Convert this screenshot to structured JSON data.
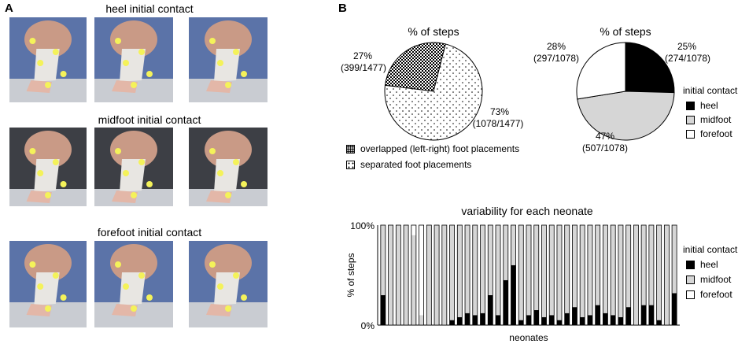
{
  "panels": {
    "a": "A",
    "b": "B"
  },
  "panel_a": {
    "rows": [
      {
        "title": "heel initial contact"
      },
      {
        "title": "midfoot initial contact"
      },
      {
        "title": "forefoot initial contact"
      }
    ],
    "photo_icon": "infant-walking-photo"
  },
  "colors": {
    "heel": "#000000",
    "midfoot": "#d6d6d6",
    "forefoot": "#ffffff",
    "photo_bg": "#5a6f9a"
  },
  "chart_data": [
    {
      "type": "pie",
      "title": "% of steps",
      "slices": [
        {
          "label": "overlapped (left-right) foot placements",
          "value": 399,
          "total": 1477,
          "pct_text": "27%",
          "count_text": "(399/1477)",
          "pattern": "dense-checker"
        },
        {
          "label": "separated foot placements",
          "value": 1078,
          "total": 1477,
          "pct_text": "73%",
          "count_text": "(1078/1477)",
          "pattern": "sparse-dots"
        }
      ],
      "legend": [
        "overlapped (left-right) foot placements",
        "separated foot placements"
      ]
    },
    {
      "type": "pie",
      "title": "% of steps",
      "slices": [
        {
          "label": "heel",
          "value": 274,
          "total": 1078,
          "pct_text": "25%",
          "count_text": "(274/1078)",
          "color": "#000000"
        },
        {
          "label": "midfoot",
          "value": 507,
          "total": 1078,
          "pct_text": "47%",
          "count_text": "(507/1078)",
          "color": "#d6d6d6"
        },
        {
          "label": "forefoot",
          "value": 297,
          "total": 1078,
          "pct_text": "28%",
          "count_text": "(297/1078)",
          "color": "#ffffff"
        }
      ],
      "legend_title": "initial contact",
      "legend": [
        "heel",
        "midfoot",
        "forefoot"
      ]
    },
    {
      "type": "bar",
      "stacked": true,
      "title": "variability for each neonate",
      "xlabel": "neonates",
      "ylabel": "% of steps",
      "yticks": [
        "100%",
        "0%"
      ],
      "ylim": [
        0,
        100
      ],
      "legend_title": "initial contact",
      "series_names": [
        "heel",
        "midfoot",
        "forefoot"
      ],
      "heel": [
        30,
        0,
        0,
        0,
        0,
        0,
        0,
        0,
        0,
        5,
        8,
        12,
        10,
        12,
        30,
        10,
        45,
        60,
        5,
        10,
        15,
        8,
        10,
        5,
        12,
        18,
        8,
        10,
        20,
        12,
        10,
        8,
        18,
        0,
        20,
        20,
        5,
        0,
        32
      ],
      "midfoot": [
        70,
        100,
        100,
        100,
        90,
        10,
        100,
        100,
        100,
        95,
        92,
        88,
        90,
        88,
        70,
        90,
        55,
        40,
        95,
        90,
        85,
        92,
        90,
        95,
        88,
        82,
        92,
        90,
        80,
        88,
        90,
        92,
        82,
        100,
        80,
        80,
        95,
        100,
        68
      ],
      "forefoot": [
        0,
        0,
        0,
        0,
        10,
        90,
        0,
        0,
        0,
        0,
        0,
        0,
        0,
        0,
        0,
        0,
        0,
        0,
        0,
        0,
        0,
        0,
        0,
        0,
        0,
        0,
        0,
        0,
        0,
        0,
        0,
        0,
        0,
        0,
        0,
        0,
        0,
        0,
        0
      ],
      "legend": [
        "heel",
        "midfoot",
        "forefoot"
      ]
    }
  ]
}
